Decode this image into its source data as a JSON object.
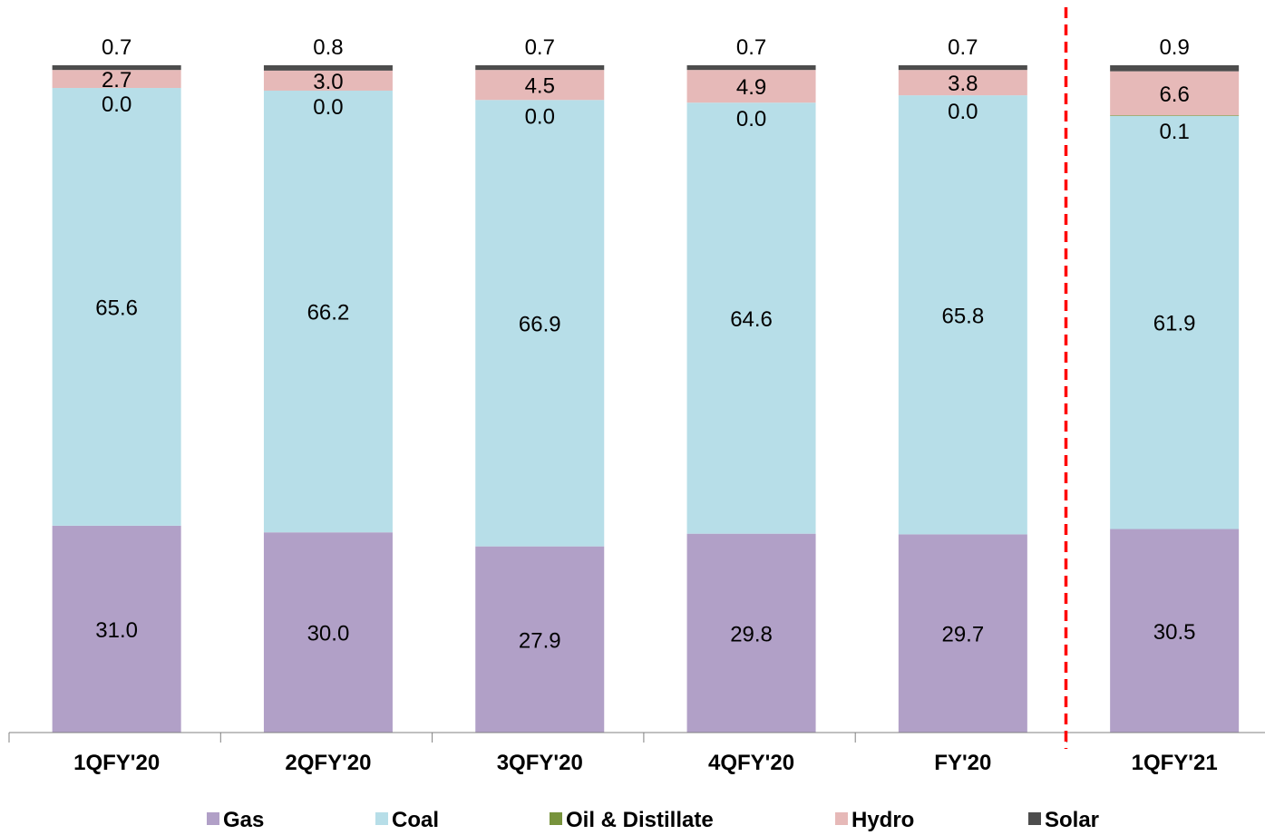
{
  "chart_data": {
    "type": "bar",
    "stacked": true,
    "categories": [
      "1QFY'20",
      "2QFY'20",
      "3QFY'20",
      "4QFY'20",
      "FY'20",
      "1QFY'21"
    ],
    "series": [
      {
        "name": "Gas",
        "color": "#b1a0c7",
        "values": [
          31.0,
          30.0,
          27.9,
          29.8,
          29.7,
          30.5
        ],
        "labels": [
          "31.0",
          "30.0",
          "27.9",
          "29.8",
          "29.7",
          "30.5"
        ]
      },
      {
        "name": "Coal",
        "color": "#b7dee8",
        "values": [
          65.6,
          66.2,
          66.9,
          64.6,
          65.8,
          61.9
        ],
        "labels": [
          "65.6",
          "66.2",
          "66.9",
          "64.6",
          "65.8",
          "61.9"
        ]
      },
      {
        "name": "Oil & Distillate",
        "color": "#77933c",
        "values": [
          0.0,
          0.0,
          0.0,
          0.0,
          0.0,
          0.1
        ],
        "labels": [
          "0.0",
          "0.0",
          "0.0",
          "0.0",
          "0.0",
          "0.1"
        ]
      },
      {
        "name": "Hydro",
        "color": "#e6b9b8",
        "values": [
          2.7,
          3.0,
          4.5,
          4.9,
          3.8,
          6.6
        ],
        "labels": [
          "2.7",
          "3.0",
          "4.5",
          "4.9",
          "3.8",
          "6.6"
        ]
      },
      {
        "name": "Solar",
        "color": "#4d4d4d",
        "values": [
          0.7,
          0.8,
          0.7,
          0.7,
          0.7,
          0.9
        ],
        "labels": [
          "0.7",
          "0.8",
          "0.7",
          "0.7",
          "0.7",
          "0.9"
        ]
      }
    ],
    "ylim": [
      0,
      100
    ],
    "grid": false,
    "legend": "bottom",
    "divider": {
      "after_category_index": 4,
      "style": "dashed",
      "color": "#ff0000"
    }
  }
}
